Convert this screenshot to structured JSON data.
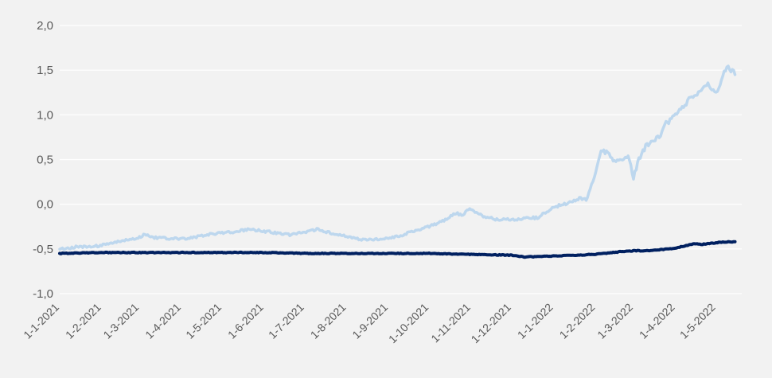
{
  "chart_data": {
    "type": "line",
    "title": "",
    "xlabel": "",
    "ylabel": "",
    "ylim": [
      -1.0,
      2.0
    ],
    "yticks": [
      -1.0,
      -0.5,
      0.0,
      0.5,
      1.0,
      1.5,
      2.0
    ],
    "ytick_labels": [
      "-1,0",
      "-0,5",
      "0,0",
      "0,5",
      "1,0",
      "1,5",
      "2,0"
    ],
    "xlim": [
      "2021-01-01",
      "2022-05-20"
    ],
    "xtick_labels": [
      "1-1-2021",
      "1-2-2021",
      "1-3-2021",
      "1-4-2021",
      "1-5-2021",
      "1-6-2021",
      "1-7-2021",
      "1-8-2021",
      "1-9-2021",
      "1-10-2021",
      "1-11-2021",
      "1-12-2021",
      "1-1-2022",
      "1-2-2022",
      "1-3-2022",
      "1-4-2022",
      "1-5-2022"
    ],
    "xtick_dates": [
      "2021-01-01",
      "2021-02-01",
      "2021-03-01",
      "2021-04-01",
      "2021-05-01",
      "2021-06-01",
      "2021-07-01",
      "2021-08-01",
      "2021-09-01",
      "2021-10-01",
      "2021-11-01",
      "2021-12-01",
      "2022-01-01",
      "2022-02-01",
      "2022-03-01",
      "2022-04-01",
      "2022-05-01"
    ],
    "grid": true,
    "legend": "none",
    "series": [
      {
        "color": "#bdd7ee",
        "x": [
          "2021-01-01",
          "2021-01-08",
          "2021-01-15",
          "2021-01-22",
          "2021-02-01",
          "2021-02-10",
          "2021-02-20",
          "2021-03-01",
          "2021-03-05",
          "2021-03-10",
          "2021-03-20",
          "2021-04-01",
          "2021-04-10",
          "2021-04-20",
          "2021-05-01",
          "2021-05-10",
          "2021-05-20",
          "2021-06-01",
          "2021-06-10",
          "2021-06-20",
          "2021-07-01",
          "2021-07-10",
          "2021-07-20",
          "2021-08-01",
          "2021-08-10",
          "2021-08-20",
          "2021-09-01",
          "2021-09-10",
          "2021-09-20",
          "2021-10-01",
          "2021-10-10",
          "2021-10-15",
          "2021-10-20",
          "2021-10-25",
          "2021-11-01",
          "2021-11-05",
          "2021-11-10",
          "2021-11-20",
          "2021-12-01",
          "2021-12-10",
          "2021-12-20",
          "2022-01-01",
          "2022-01-10",
          "2022-01-20",
          "2022-01-25",
          "2022-02-01",
          "2022-02-05",
          "2022-02-10",
          "2022-02-15",
          "2022-02-20",
          "2022-02-25",
          "2022-03-01",
          "2022-03-05",
          "2022-03-10",
          "2022-03-15",
          "2022-03-20",
          "2022-03-25",
          "2022-04-01",
          "2022-04-05",
          "2022-04-10",
          "2022-04-15",
          "2022-04-20",
          "2022-04-25",
          "2022-05-01",
          "2022-05-05",
          "2022-05-10",
          "2022-05-12",
          "2022-05-15"
        ],
        "values": [
          -0.5,
          -0.49,
          -0.47,
          -0.48,
          -0.46,
          -0.43,
          -0.4,
          -0.37,
          -0.33,
          -0.37,
          -0.38,
          -0.39,
          -0.37,
          -0.34,
          -0.32,
          -0.31,
          -0.28,
          -0.3,
          -0.32,
          -0.34,
          -0.31,
          -0.28,
          -0.32,
          -0.36,
          -0.39,
          -0.4,
          -0.38,
          -0.35,
          -0.3,
          -0.25,
          -0.2,
          -0.15,
          -0.1,
          -0.12,
          -0.05,
          -0.1,
          -0.13,
          -0.17,
          -0.17,
          -0.16,
          -0.15,
          -0.03,
          0.0,
          0.07,
          0.05,
          0.35,
          0.6,
          0.58,
          0.48,
          0.5,
          0.55,
          0.3,
          0.5,
          0.65,
          0.7,
          0.75,
          0.9,
          1.0,
          1.05,
          1.15,
          1.22,
          1.25,
          1.35,
          1.25,
          1.4,
          1.55,
          1.5,
          1.45
        ]
      },
      {
        "color": "#002060",
        "x": [
          "2021-01-01",
          "2021-02-01",
          "2021-03-01",
          "2021-04-01",
          "2021-05-01",
          "2021-06-01",
          "2021-07-01",
          "2021-08-01",
          "2021-09-01",
          "2021-10-01",
          "2021-11-01",
          "2021-12-01",
          "2021-12-10",
          "2022-01-01",
          "2022-02-01",
          "2022-02-20",
          "2022-03-01",
          "2022-03-10",
          "2022-03-20",
          "2022-04-01",
          "2022-04-10",
          "2022-04-15",
          "2022-04-20",
          "2022-05-01",
          "2022-05-10",
          "2022-05-15"
        ],
        "values": [
          -0.55,
          -0.54,
          -0.54,
          -0.54,
          -0.54,
          -0.54,
          -0.55,
          -0.55,
          -0.55,
          -0.55,
          -0.56,
          -0.57,
          -0.59,
          -0.58,
          -0.56,
          -0.53,
          -0.52,
          -0.52,
          -0.51,
          -0.49,
          -0.46,
          -0.44,
          -0.45,
          -0.43,
          -0.42,
          -0.42
        ]
      }
    ]
  }
}
